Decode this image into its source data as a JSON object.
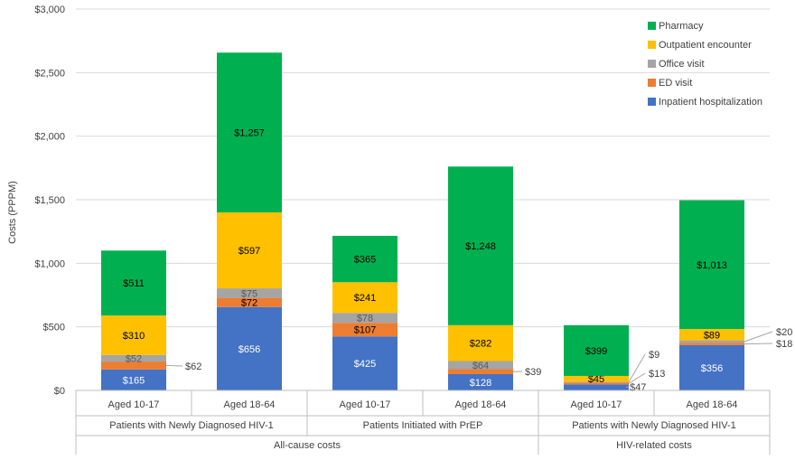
{
  "chart_data": {
    "type": "stacked-bar",
    "title": "",
    "ylabel": "Costs (PPPM)",
    "ylim": [
      0,
      3000
    ],
    "yticks": [
      {
        "value": 0,
        "label": "$0"
      },
      {
        "value": 500,
        "label": "$500"
      },
      {
        "value": 1000,
        "label": "$1,000"
      },
      {
        "value": 1500,
        "label": "$1,500"
      },
      {
        "value": 2000,
        "label": "$2,000"
      },
      {
        "value": 2500,
        "label": "$2,500"
      },
      {
        "value": 3000,
        "label": "$3,000"
      }
    ],
    "categories": [
      "Aged 10-17",
      "Aged 18-64",
      "Aged 10-17",
      "Aged 18-64",
      "Aged 10-17",
      "Aged 18-64"
    ],
    "groups": [
      {
        "label": "Patients with Newly Diagnosed HIV-1",
        "span": [
          0,
          1
        ]
      },
      {
        "label": "Patients Initiated with PrEP",
        "span": [
          2,
          3
        ]
      },
      {
        "label": "Patients with Newly Diagnosed HIV-1",
        "span": [
          4,
          5
        ]
      }
    ],
    "supergroups": [
      {
        "label": "All-cause costs",
        "span": [
          0,
          3
        ]
      },
      {
        "label": "HIV-related costs",
        "span": [
          4,
          5
        ]
      }
    ],
    "legend_position": "top-right",
    "series": [
      {
        "name": "Inpatient hospitalization",
        "color": "#4472c4",
        "values": [
          165,
          656,
          425,
          128,
          47,
          356
        ],
        "labels": [
          "$165",
          "$656",
          "$425",
          "$128",
          "$47",
          "$356"
        ]
      },
      {
        "name": "ED visit",
        "color": "#ed7d31",
        "values": [
          62,
          72,
          107,
          39,
          13,
          18
        ],
        "labels": [
          "$62",
          "$72",
          "$107",
          "$39",
          "$13",
          "$18"
        ]
      },
      {
        "name": "Office visit",
        "color": "#a5a5a5",
        "values": [
          52,
          75,
          78,
          64,
          9,
          20
        ],
        "labels": [
          "$52",
          "$75",
          "$78",
          "$64",
          "$9",
          "$20"
        ]
      },
      {
        "name": "Outpatient encounter",
        "color": "#ffc000",
        "values": [
          310,
          597,
          241,
          282,
          45,
          89
        ],
        "labels": [
          "$310",
          "$597",
          "$241",
          "$282",
          "$45",
          "$89"
        ]
      },
      {
        "name": "Pharmacy",
        "color": "#00b050",
        "values": [
          511,
          1257,
          365,
          1248,
          399,
          1013
        ],
        "labels": [
          "$511",
          "$1,257",
          "$365",
          "$1,248",
          "$399",
          "$1,013"
        ]
      }
    ]
  }
}
